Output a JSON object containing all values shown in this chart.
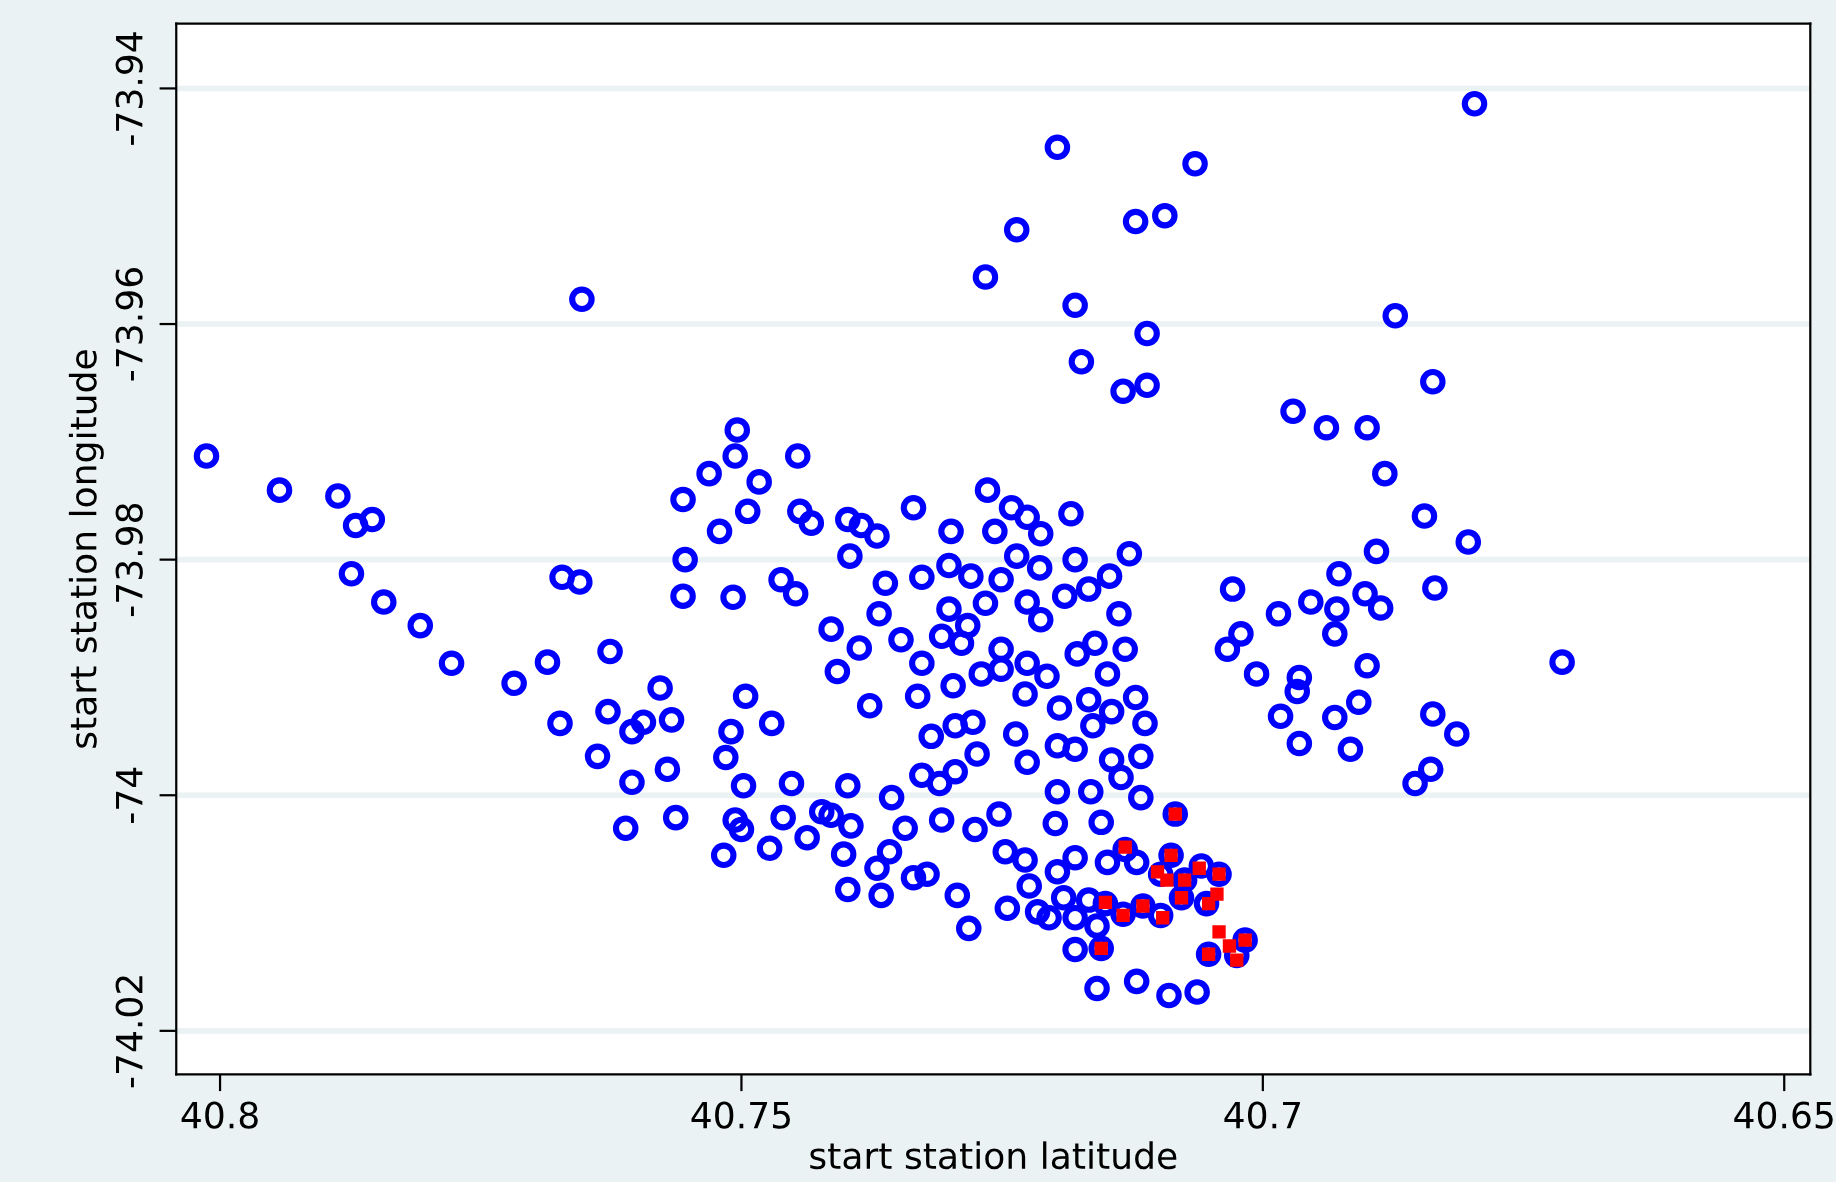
{
  "chart_data": {
    "type": "scatter",
    "xlabel": "start station latitude",
    "ylabel": "start station longitude",
    "xlim": [
      40.8042,
      40.6475
    ],
    "ylim": [
      -74.0237,
      -73.9345
    ],
    "xticks": [
      40.8,
      40.75,
      40.7,
      40.65
    ],
    "yticks": [
      -74.02,
      -74,
      -73.98,
      -73.96,
      -73.94
    ],
    "grid": "y",
    "legend": false,
    "series": [
      {
        "color": "#0000ff",
        "marker": "circle",
        "x": [
          40.8013,
          40.7943,
          40.7887,
          40.787,
          40.7854,
          40.7874,
          40.7843,
          40.7808,
          40.7778,
          40.7718,
          40.7686,
          40.7672,
          40.7655,
          40.7674,
          40.7638,
          40.7626,
          40.7628,
          40.7605,
          40.7594,
          40.7578,
          40.7567,
          40.7571,
          40.7605,
          40.7611,
          40.7563,
          40.7556,
          40.7531,
          40.7504,
          40.7506,
          40.7483,
          40.7494,
          40.7521,
          40.7554,
          40.7556,
          40.7508,
          40.7462,
          40.7448,
          40.7446,
          40.7444,
          40.7433,
          40.7496,
          40.7471,
          40.751,
          40.7515,
          40.7498,
          40.7452,
          40.7506,
          40.75,
          40.746,
          40.7437,
          40.7517,
          40.7473,
          40.7174,
          40.7134,
          40.7111,
          40.6971,
          40.7264,
          40.7241,
          40.7226,
          40.7184,
          40.7335,
          40.7398,
          40.7385,
          40.737,
          40.7299,
          40.7257,
          40.7213,
          40.7396,
          40.7301,
          40.728,
          40.7236,
          40.7214,
          40.7251,
          40.7327,
          40.7362,
          40.718,
          40.7128,
          40.7147,
          40.7167,
          40.719,
          40.7029,
          40.6985,
          40.7021,
          40.7034,
          40.7006,
          40.6983,
          40.6965,
          40.7368,
          40.7301,
          40.7266,
          40.7226,
          40.7213,
          40.7138,
          40.7414,
          40.7387,
          40.7347,
          40.7308,
          40.7289,
          40.7283,
          40.7251,
          40.7226,
          40.7178,
          40.7161,
          40.7132,
          40.7408,
          40.7327,
          40.727,
          40.7251,
          40.7207,
          40.7149,
          40.7377,
          40.7331,
          40.7297,
          40.7228,
          40.7195,
          40.7167,
          40.7145,
          40.7122,
          40.7113,
          40.7163,
          40.7318,
          40.7295,
          40.7278,
          40.7237,
          40.7197,
          40.718,
          40.7274,
          40.7226,
          40.7145,
          40.7117,
          40.7327,
          40.731,
          40.7295,
          40.7136,
          40.7197,
          40.7165,
          40.7117,
          40.7398,
          40.7356,
          40.7423,
          40.7414,
          40.7395,
          40.7343,
          40.7308,
          40.7276,
          40.7253,
          40.7199,
          40.7155,
          40.7402,
          40.7358,
          40.737,
          40.7335,
          40.7322,
          40.7293,
          40.7398,
          40.7366,
          40.7282,
          40.7247,
          40.7228,
          40.7224,
          40.7197,
          40.718,
          40.7149,
          40.7245,
          40.7216,
          40.7205,
          40.7191,
          40.718,
          40.7167,
          40.7159,
          40.718,
          40.7159,
          40.7121,
          40.709,
          40.7063,
          40.7132,
          40.7121,
          40.7088,
          40.7059,
          40.7042,
          40.7098,
          40.7075,
          40.7054,
          40.7078,
          40.7098,
          40.7134,
          40.7151,
          40.7115,
          40.7155,
          40.7052,
          40.7025,
          40.7017,
          40.7084,
          40.6873,
          40.6837,
          40.6939,
          40.69,
          40.6883,
          40.6845,
          40.6803,
          40.6891,
          40.6927,
          40.6954,
          40.6929,
          40.6902,
          40.6887,
          40.6835,
          40.6931,
          40.6965,
          40.6967,
          40.69,
          40.6713,
          40.6931,
          40.6908,
          40.6837,
          40.6814,
          40.6916,
          40.6839,
          40.6854,
          40.6797,
          40.7197,
          40.7065,
          40.7236,
          40.7122,
          40.7094,
          40.7266,
          40.718,
          40.7111,
          40.7653
        ],
        "values": [
          -73.9712,
          -73.9741,
          -73.9746,
          -73.9771,
          -73.9766,
          -73.9812,
          -73.9836,
          -73.9856,
          -73.9888,
          -73.9905,
          -73.9887,
          -73.9815,
          -73.9819,
          -73.9939,
          -73.9967,
          -73.9878,
          -73.9929,
          -73.9946,
          -73.9938,
          -73.9909,
          -73.9936,
          -73.9978,
          -73.9989,
          -74.0028,
          -74.0019,
          -73.9749,
          -73.9727,
          -73.969,
          -73.9712,
          -73.9734,
          -73.9759,
          -73.9776,
          -73.98,
          -73.9831,
          -73.9832,
          -73.9817,
          -73.9829,
          -73.9712,
          -73.9759,
          -73.9769,
          -73.9916,
          -73.9939,
          -73.9946,
          -73.9968,
          -73.9992,
          -73.999,
          -74.0021,
          -74.0029,
          -74.0019,
          -74.0036,
          -74.0051,
          -74.0045,
          -73.9632,
          -73.9657,
          -73.9652,
          -73.9674,
          -73.9741,
          -73.9756,
          -73.9764,
          -73.9761,
          -73.9756,
          -73.9766,
          -73.9771,
          -73.978,
          -73.9776,
          -73.9776,
          -73.9778,
          -73.9797,
          -73.9805,
          -73.9814,
          -73.9797,
          -73.9807,
          -73.9817,
          -73.9815,
          -73.982,
          -73.98,
          -73.9795,
          -73.9814,
          -73.9825,
          -73.9831,
          -73.9825,
          -73.9846,
          -73.9863,
          -73.9876,
          -73.9897,
          -73.9933,
          -73.9956,
          -73.9846,
          -73.9842,
          -73.9837,
          -73.9836,
          -73.9851,
          -73.9846,
          -73.9859,
          -73.9875,
          -73.9868,
          -73.9865,
          -73.9871,
          -73.9856,
          -73.9876,
          -73.9888,
          -73.988,
          -73.9871,
          -73.9876,
          -73.9895,
          -73.9888,
          -73.9897,
          -73.9893,
          -73.9899,
          -73.9897,
          -73.9924,
          -73.9916,
          -73.9907,
          -73.9914,
          -73.9926,
          -73.9919,
          -73.9929,
          -73.9917,
          -73.9939,
          -73.9941,
          -73.995,
          -73.9941,
          -73.9938,
          -73.9948,
          -73.9958,
          -73.9961,
          -73.9965,
          -73.9972,
          -73.997,
          -73.9967,
          -73.9983,
          -73.999,
          -73.998,
          -73.9985,
          -73.9997,
          -73.9997,
          -74.0002,
          -73.9992,
          -74.0002,
          -74.0014,
          -74.0017,
          -74.0026,
          -74.0028,
          -74.0021,
          -74.0029,
          -74.0016,
          -74.0024,
          -74.0023,
          -74.005,
          -74.0048,
          -74.0062,
          -74.007,
          -74.0067,
          -74.0085,
          -74.008,
          -74.0085,
          -74.0113,
          -74.0048,
          -74.0055,
          -74.0077,
          -74.0065,
          -74.0053,
          -74.0057,
          -74.0096,
          -74.0099,
          -74.0104,
          -74.0087,
          -74.0104,
          -74.0089,
          -74.0111,
          -74.0131,
          -74.0164,
          -74.0158,
          -74.017,
          -74.0167,
          -74.0046,
          -74.0057,
          -74.0051,
          -74.006,
          -74.0067,
          -74.0067,
          -74.0072,
          -74.0092,
          -74.0087,
          -74.0102,
          -74.0101,
          -74.0092,
          -74.0094,
          -74.013,
          -74.0135,
          -74.0136,
          -74.0123,
          -74.0016,
          -73.9593,
          -73.9649,
          -73.9688,
          -73.9688,
          -73.9727,
          -73.9763,
          -73.9785,
          -73.9793,
          -73.9812,
          -73.9836,
          -73.9842,
          -73.9829,
          -73.9841,
          -73.9824,
          -73.9863,
          -73.99,
          -73.9912,
          -73.989,
          -73.9887,
          -73.9934,
          -73.9921,
          -73.9931,
          -73.9948,
          -73.9961,
          -73.9978,
          -73.999,
          -73.9413,
          -73.945,
          -73.9464,
          -73.952,
          -73.9513,
          -73.9508,
          -73.956,
          -73.9584,
          -73.9608,
          -73.9579
        ]
      },
      {
        "color": "#ff0000",
        "marker": "square",
        "x": [
          40.7132,
          40.7088,
          40.7101,
          40.7092,
          40.7075,
          40.7061,
          40.7042,
          40.7078,
          40.7052,
          40.7044,
          40.7151,
          40.7134,
          40.7115,
          40.7096,
          40.7155,
          40.7042,
          40.7052,
          40.7032,
          40.7025,
          40.7017,
          40.7084
        ],
        "values": [
          -74.0044,
          -74.0051,
          -74.0065,
          -74.0072,
          -74.0072,
          -74.0062,
          -74.0067,
          -74.0087,
          -74.0092,
          -74.0084,
          -74.0091,
          -74.0102,
          -74.0094,
          -74.0104,
          -74.013,
          -74.0116,
          -74.0135,
          -74.0128,
          -74.014,
          -74.0123,
          -74.0016
        ]
      }
    ]
  }
}
